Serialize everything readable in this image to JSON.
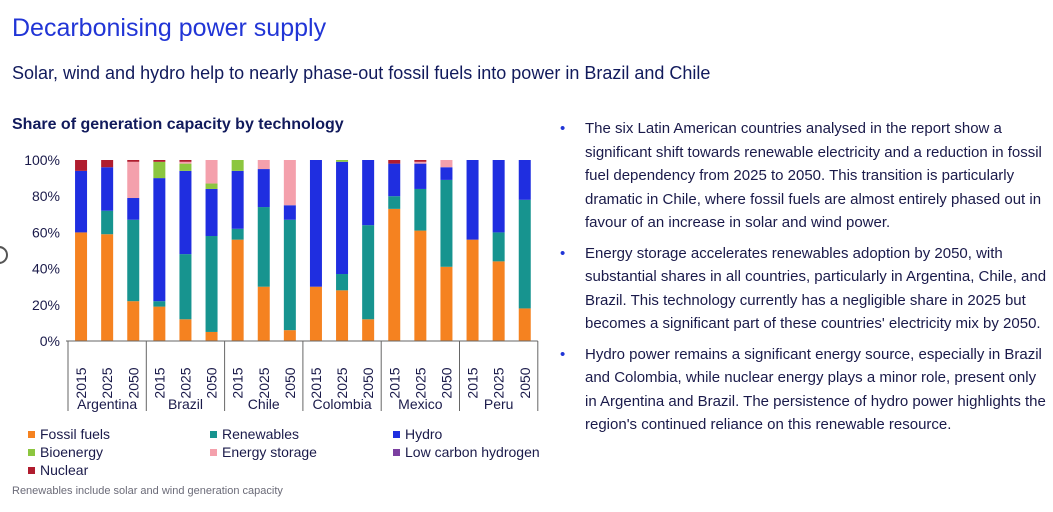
{
  "header": {
    "title": "Decarbonising power supply",
    "subtitle": "Solar, wind and hydro help to nearly phase-out fossil fuels into power in Brazil and Chile"
  },
  "note": "Renewables include solar and wind generation capacity",
  "bullets": [
    "The six Latin American countries analysed in the report show a significant shift towards renewable electricity and a reduction in fossil fuel dependency from 2025 to 2050. This transition is particularly dramatic in Chile, where fossil fuels are almost entirely phased out in favour of an increase in solar and wind power.",
    "Energy storage accelerates renewables adoption by 2050, with substantial shares in all countries, particularly in Argentina, Chile, and Brazil. This technology currently has a negligible share in 2025 but becomes a significant part of these countries' electricity mix by 2050.",
    "Hydro power remains a significant energy source, especially in Brazil and Colombia, while nuclear energy plays a minor role, present only in Argentina and Brazil. The persistence of hydro power highlights the region's continued reliance on this renewable resource."
  ],
  "chart_data": {
    "type": "bar",
    "stacked": true,
    "title": "Share of generation capacity by technology",
    "ylim": [
      0,
      100
    ],
    "y_ticks": [
      "0%",
      "20%",
      "40%",
      "60%",
      "80%",
      "100%"
    ],
    "categories": [
      "2015",
      "2025",
      "2050",
      "2015",
      "2025",
      "2050",
      "2015",
      "2025",
      "2050",
      "2015",
      "2025",
      "2050",
      "2015",
      "2025",
      "2050",
      "2015",
      "2025",
      "2050"
    ],
    "groups": [
      {
        "name": "Argentina",
        "years": [
          "2015",
          "2025",
          "2050"
        ]
      },
      {
        "name": "Brazil",
        "years": [
          "2015",
          "2025",
          "2050"
        ]
      },
      {
        "name": "Chile",
        "years": [
          "2015",
          "2025",
          "2050"
        ]
      },
      {
        "name": "Colombia",
        "years": [
          "2015",
          "2025",
          "2050"
        ]
      },
      {
        "name": "Mexico",
        "years": [
          "2015",
          "2025",
          "2050"
        ]
      },
      {
        "name": "Peru",
        "years": [
          "2015",
          "2025",
          "2050"
        ]
      }
    ],
    "series": [
      {
        "name": "Fossil fuels",
        "color": "#f58220",
        "values": [
          60,
          59,
          22,
          19,
          12,
          5,
          56,
          30,
          6,
          30,
          28,
          12,
          73,
          61,
          41,
          56,
          44,
          18
        ]
      },
      {
        "name": "Renewables",
        "color": "#17948f",
        "values": [
          0,
          13,
          45,
          3,
          36,
          53,
          6,
          44,
          61,
          0,
          9,
          52,
          7,
          23,
          48,
          0,
          16,
          60
        ]
      },
      {
        "name": "Hydro",
        "color": "#1f2ee0",
        "values": [
          34,
          24,
          12,
          68,
          46,
          26,
          32,
          21,
          8,
          70,
          62,
          36,
          18,
          14,
          7,
          44,
          40,
          22
        ]
      },
      {
        "name": "Bioenergy",
        "color": "#8cc63f",
        "values": [
          0,
          0,
          0,
          9,
          4,
          3,
          6,
          0,
          0,
          0,
          1,
          0,
          0,
          0,
          0,
          0,
          0,
          0
        ]
      },
      {
        "name": "Energy storage",
        "color": "#f4a0ac",
        "values": [
          0,
          0,
          20,
          0,
          1,
          13,
          0,
          5,
          25,
          0,
          0,
          0,
          0,
          1,
          4,
          0,
          0,
          0
        ]
      },
      {
        "name": "Low carbon hydrogen",
        "color": "#7b3fa0",
        "values": [
          0,
          0,
          0,
          0,
          0,
          0,
          0,
          0,
          0,
          0,
          0,
          0,
          0,
          0,
          0,
          0,
          0,
          0
        ]
      },
      {
        "name": "Nuclear",
        "color": "#b01c2e",
        "values": [
          6,
          4,
          1,
          1,
          1,
          0,
          0,
          0,
          0,
          0,
          0,
          0,
          2,
          1,
          0,
          0,
          0,
          0
        ]
      }
    ],
    "legend_position": "bottom"
  }
}
